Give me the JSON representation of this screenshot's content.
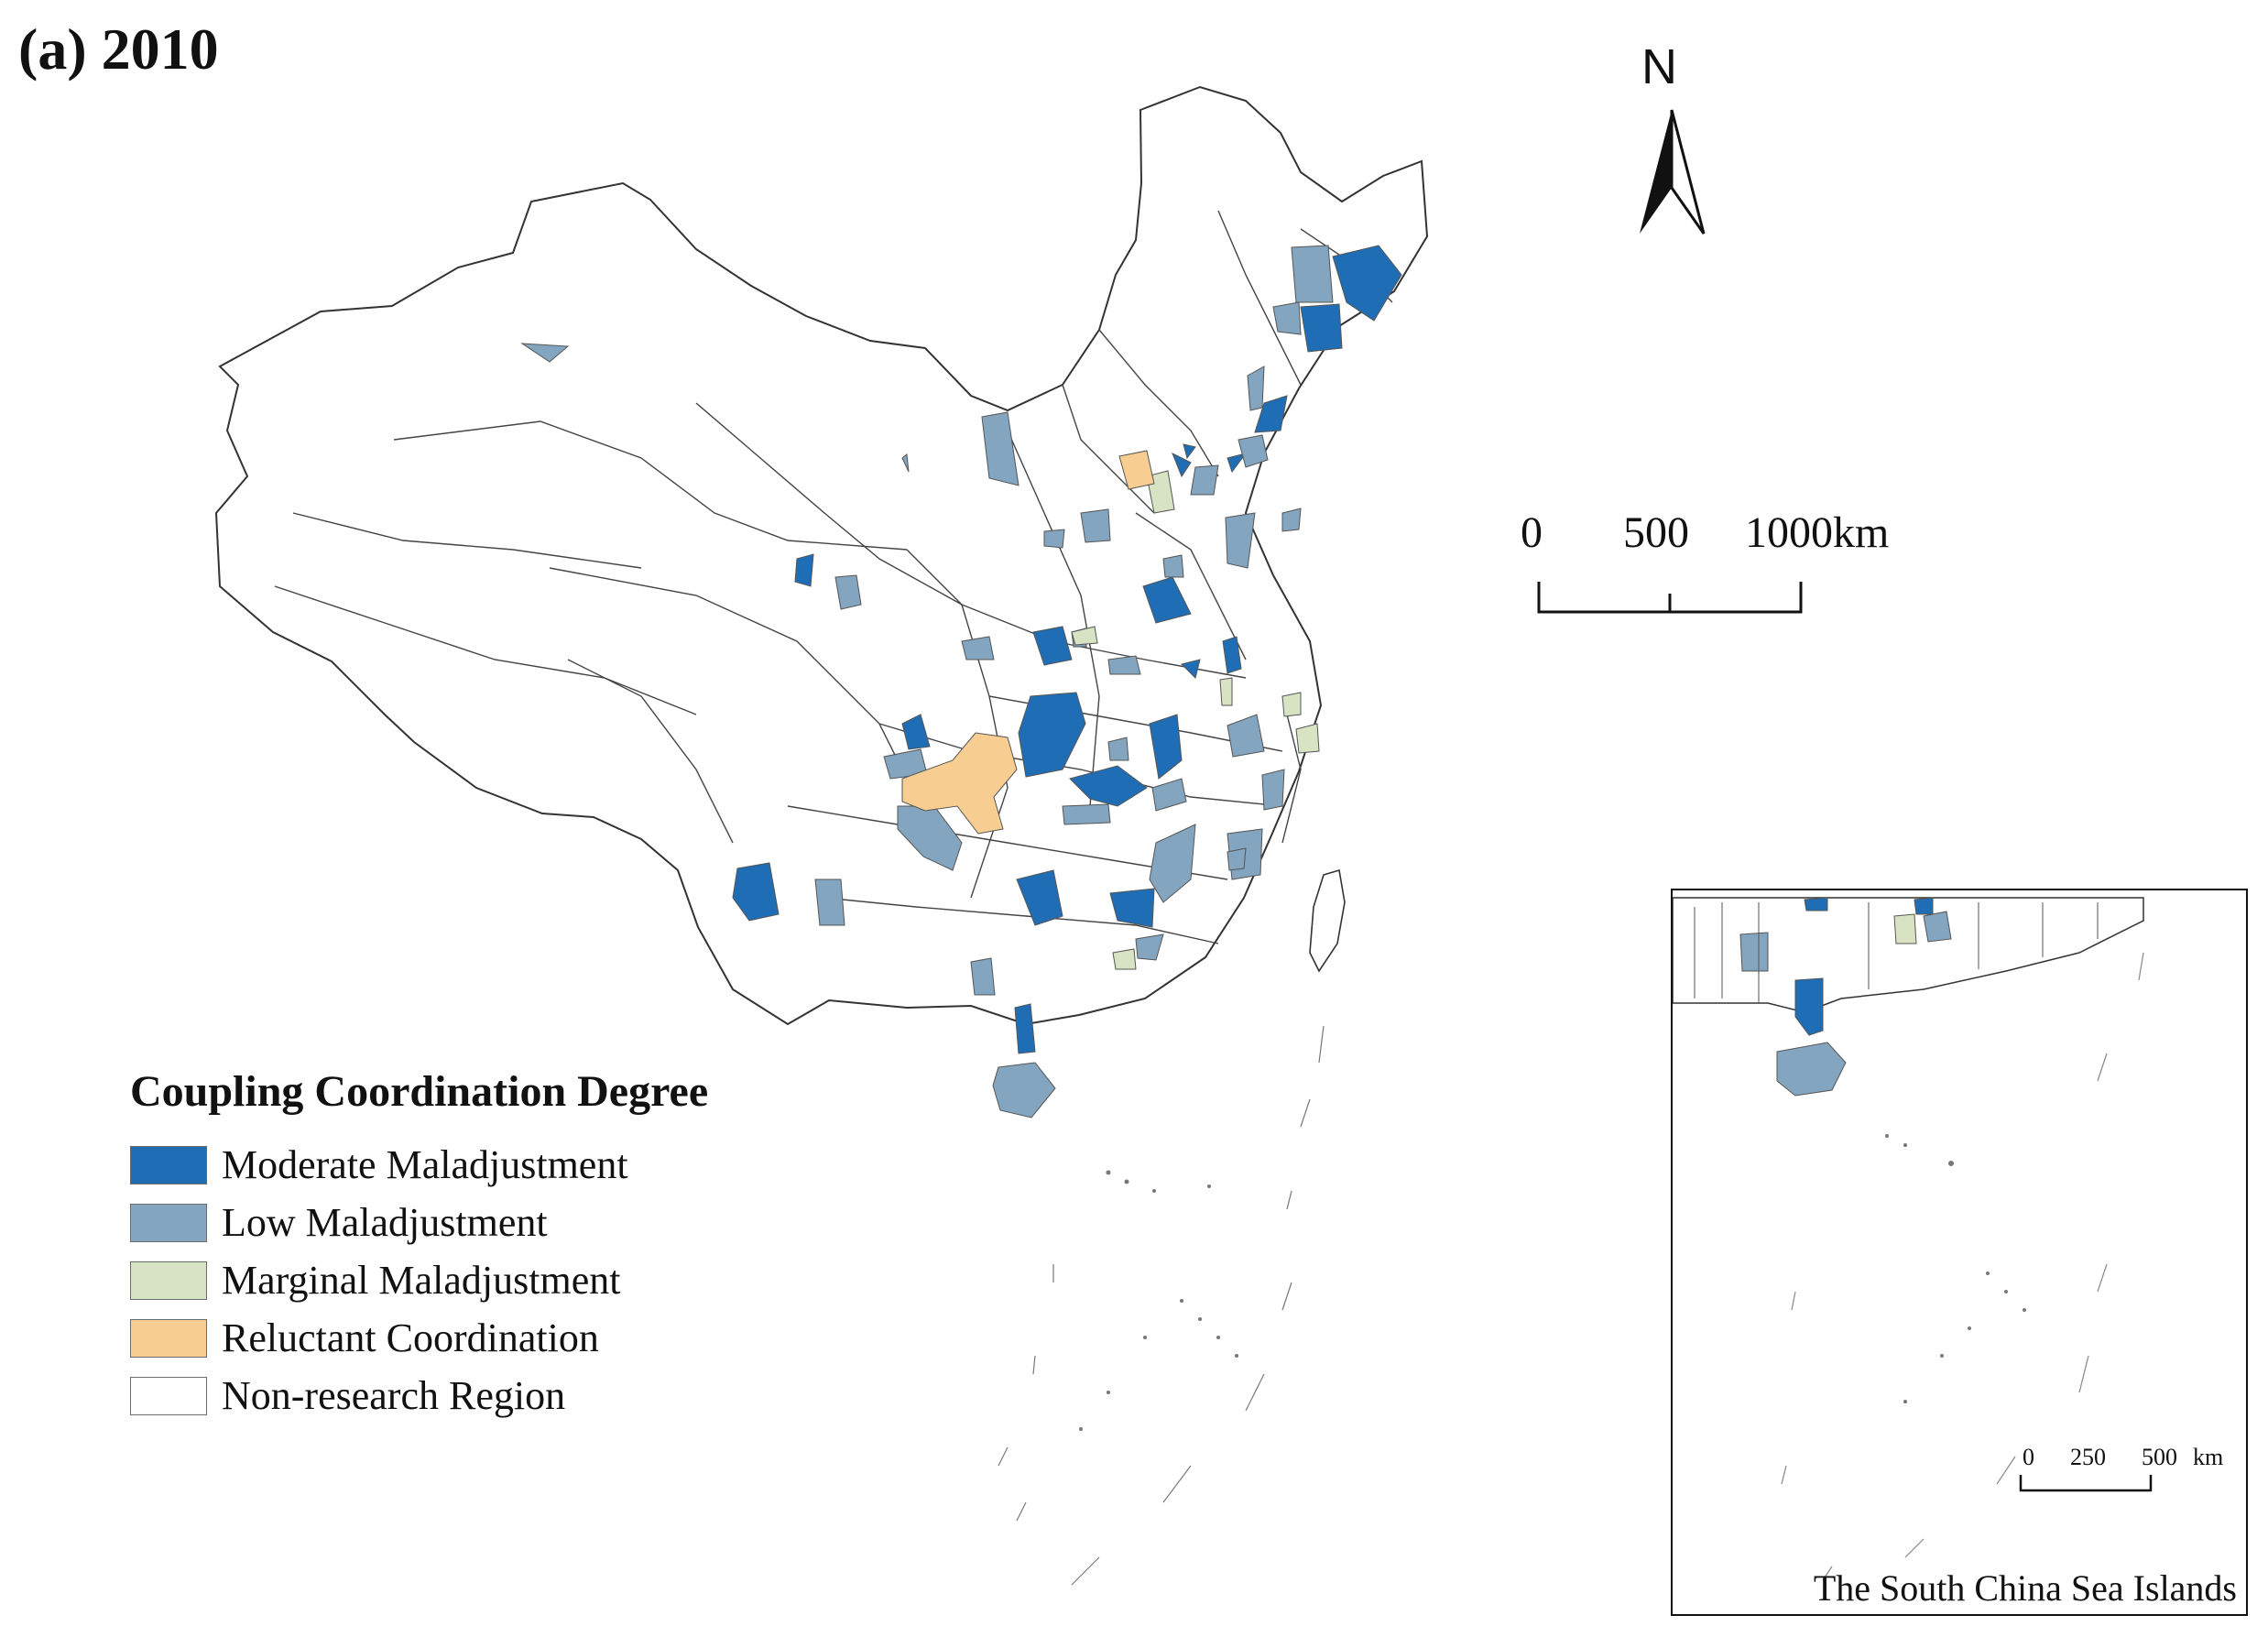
{
  "title": "(a) 2010",
  "north_label": "N",
  "scale_bar": {
    "labels": [
      "0",
      "500",
      "1000km"
    ]
  },
  "legend": {
    "title": "Coupling Coordination Degree",
    "items": [
      {
        "label": "Moderate Maladjustment",
        "color": "#1f6eb5"
      },
      {
        "label": "Low Maladjustment",
        "color": "#83a5bf"
      },
      {
        "label": "Marginal Maladjustment",
        "color": "#d8e3c4"
      },
      {
        "label": "Reluctant Coordination",
        "color": "#f8cd91"
      },
      {
        "label": "Non-research Region",
        "color": "#ffffff"
      }
    ]
  },
  "inset": {
    "caption": "The South China Sea Islands",
    "scale_labels": [
      "0",
      "250",
      "500",
      "km"
    ]
  }
}
